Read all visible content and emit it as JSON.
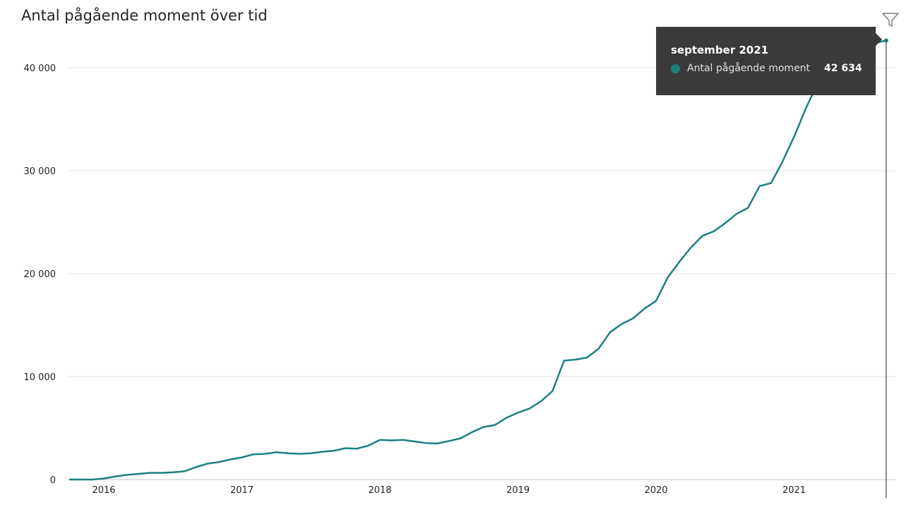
{
  "title": "Antal pågående moment över tid",
  "icons": {
    "filter": "filter-icon"
  },
  "colors": {
    "line": "#1b8080",
    "grid": "#e6e6e6",
    "tooltip_bg": "#3b3a39",
    "axis_text": "#252423"
  },
  "tooltip": {
    "title": "september 2021",
    "series_label": "Antal pågående moment",
    "value": "42 634"
  },
  "chart_data": {
    "type": "line",
    "title": "Antal pågående moment över tid",
    "xlabel": "",
    "ylabel": "",
    "x_tick_labels": [
      "2016",
      "2017",
      "2018",
      "2019",
      "2020",
      "2021"
    ],
    "y_tick_labels": [
      "0",
      "10 000",
      "20 000",
      "30 000",
      "40 000"
    ],
    "ylim": [
      0,
      43000
    ],
    "grid": true,
    "series": [
      {
        "name": "Antal pågående moment",
        "color": "#1b8080",
        "x": [
          "2015-10",
          "2015-11",
          "2015-12",
          "2016-01",
          "2016-02",
          "2016-03",
          "2016-04",
          "2016-05",
          "2016-06",
          "2016-07",
          "2016-08",
          "2016-09",
          "2016-10",
          "2016-11",
          "2016-12",
          "2017-01",
          "2017-02",
          "2017-03",
          "2017-04",
          "2017-05",
          "2017-06",
          "2017-07",
          "2017-08",
          "2017-09",
          "2017-10",
          "2017-11",
          "2017-12",
          "2018-01",
          "2018-02",
          "2018-03",
          "2018-04",
          "2018-05",
          "2018-06",
          "2018-07",
          "2018-08",
          "2018-09",
          "2018-10",
          "2018-11",
          "2018-12",
          "2019-01",
          "2019-02",
          "2019-03",
          "2019-04",
          "2019-05",
          "2019-06",
          "2019-07",
          "2019-08",
          "2019-09",
          "2019-10",
          "2019-11",
          "2019-12",
          "2020-01",
          "2020-02",
          "2020-03",
          "2020-04",
          "2020-05",
          "2020-06",
          "2020-07",
          "2020-08",
          "2020-09",
          "2020-10",
          "2020-11",
          "2020-12",
          "2021-01",
          "2021-02",
          "2021-03",
          "2021-04",
          "2021-05",
          "2021-06",
          "2021-07",
          "2021-08",
          "2021-09"
        ],
        "values": [
          0,
          0,
          0,
          100,
          300,
          450,
          550,
          650,
          650,
          700,
          800,
          1200,
          1550,
          1700,
          1950,
          2150,
          2450,
          2500,
          2650,
          2550,
          2500,
          2550,
          2700,
          2800,
          3050,
          3000,
          3300,
          3850,
          3800,
          3850,
          3700,
          3550,
          3500,
          3750,
          4000,
          4600,
          5100,
          5300,
          6000,
          6500,
          6900,
          7600,
          8600,
          11550,
          11650,
          11850,
          12700,
          14300,
          15100,
          15650,
          16600,
          17350,
          19600,
          21100,
          22500,
          23650,
          24100,
          24900,
          25800,
          26400,
          28500,
          28800,
          30900,
          33300,
          36000,
          38400,
          40500,
          41100,
          41600,
          42100,
          42400,
          42634
        ]
      }
    ]
  }
}
